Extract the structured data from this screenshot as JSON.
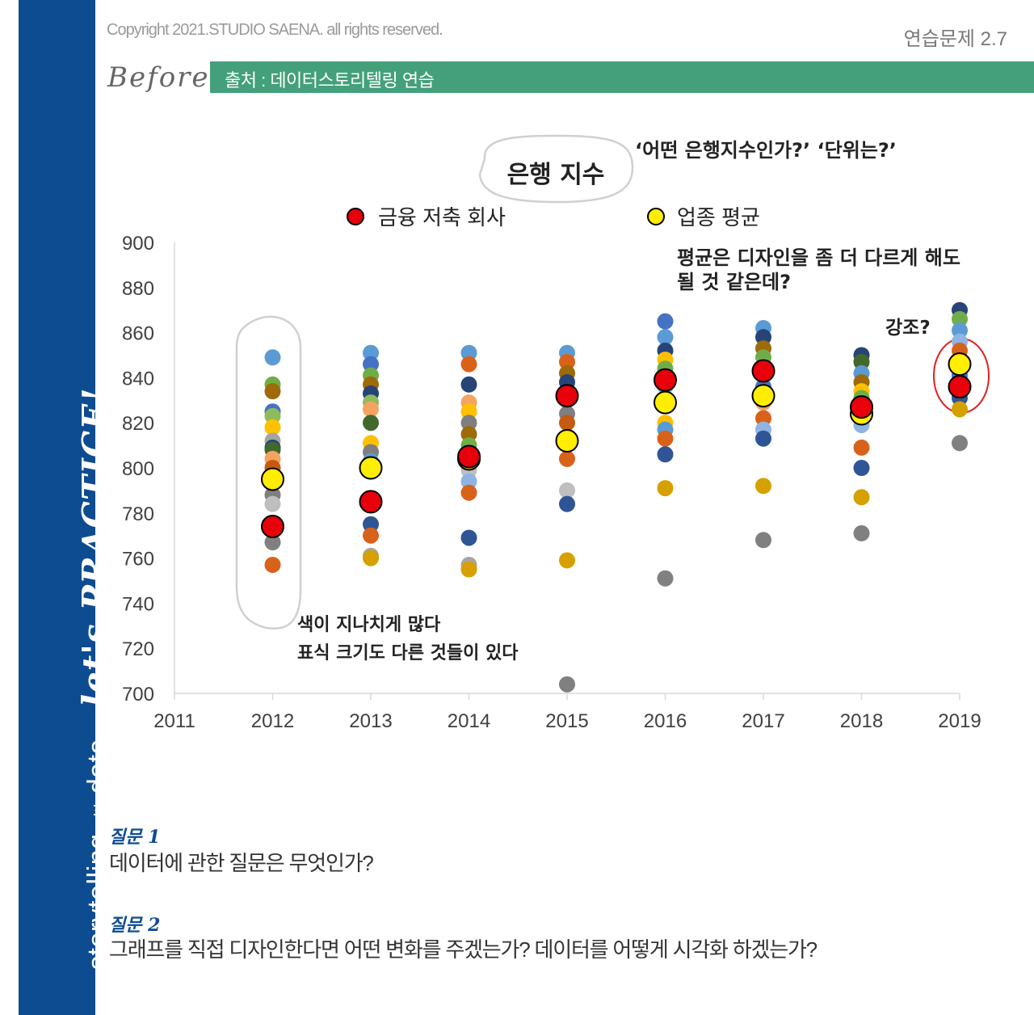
{
  "header": {
    "copyright": "Copyright 2021.STUDIO SAENA. all rights reserved.",
    "exercise": "연습문제 2.7",
    "before_label": "Before",
    "source": "출처 : 데이터스토리텔링 연습"
  },
  "sidebar": {
    "title": "storytelling",
    "with": "with",
    "data": "data",
    "script": "let's PRACTICE!"
  },
  "annotations": {
    "bubble": "은행 지수",
    "question_top": "‘어떤 은행지수인가?’ ‘단위는?’",
    "average_note_line1": "평균은 디자인을 좀 더 다르게 해도",
    "average_note_line2": "될 것 같은데?",
    "emphasis": "강조?",
    "colors_line1": "색이 지나치게 많다",
    "colors_line2": "표식 크기도 다른 것들이 있다"
  },
  "questions": [
    {
      "label": "질문 1",
      "text": "데이터에 관한 질문은 무엇인가?"
    },
    {
      "label": "질문 2",
      "text": "그래프를 직접 디자인한다면 어떤 변화를 주겠는가? 데이터를 어떻게 시각화 하겠는가?"
    }
  ],
  "chart_data": {
    "type": "scatter",
    "title": "은행 지수",
    "xlabel": "",
    "ylabel": "",
    "xlim": [
      2011,
      2019
    ],
    "ylim": [
      700,
      900
    ],
    "xticks": [
      "2011",
      "2012",
      "2013",
      "2014",
      "2015",
      "2016",
      "2017",
      "2018",
      "2019"
    ],
    "yticks": [
      "900",
      "880",
      "860",
      "840",
      "820",
      "800",
      "780",
      "760",
      "740",
      "720",
      "700"
    ],
    "legend": [
      {
        "name": "금융 저축 회사",
        "color": "#e8000b"
      },
      {
        "name": "업종 평균",
        "color": "#ffee00"
      }
    ],
    "series": [
      {
        "name": "금융 저축 회사",
        "color": "#e8000b",
        "x": [
          2012,
          2013,
          2014,
          2015,
          2016,
          2017,
          2018,
          2019
        ],
        "y": [
          774,
          785,
          805,
          832,
          839,
          843,
          827,
          836
        ]
      },
      {
        "name": "업종 평균",
        "color": "#ffee00",
        "x": [
          2012,
          2013,
          2014,
          2015,
          2016,
          2017,
          2018,
          2019
        ],
        "y": [
          795,
          800,
          804,
          812,
          829,
          832,
          824,
          846
        ]
      }
    ],
    "other_banks": [
      {
        "x": 2012,
        "y": [
          849,
          837,
          834,
          825,
          823,
          818,
          812,
          809,
          808,
          804,
          800,
          788,
          784,
          767,
          757
        ],
        "colors": [
          "#5b9bd5",
          "#70ad47",
          "#9e6a0a",
          "#4472c4",
          "#8fbc5a",
          "#ffc000",
          "#a5a5a5",
          "#264478",
          "#43682b",
          "#f4a460",
          "#c55a11",
          "#7f7f7f",
          "#bfbfbf",
          "#808080",
          "#d9621b"
        ]
      },
      {
        "x": 2013,
        "y": [
          851,
          846,
          841,
          837,
          833,
          829,
          826,
          820,
          811,
          807,
          803,
          775,
          770,
          761,
          760
        ],
        "colors": [
          "#5b9bd5",
          "#4472c4",
          "#70ad47",
          "#9e6a0a",
          "#264478",
          "#8fbc5a",
          "#f4a460",
          "#43682b",
          "#ffc000",
          "#7f7f7f",
          "#5b9bd5",
          "#2f5597",
          "#d9621b",
          "#a5a5a5",
          "#d6a000"
        ]
      },
      {
        "x": 2014,
        "y": [
          851,
          846,
          837,
          829,
          825,
          820,
          815,
          810,
          799,
          794,
          789,
          769,
          757,
          755
        ],
        "colors": [
          "#5b9bd5",
          "#d9621b",
          "#264478",
          "#f4a460",
          "#ffc000",
          "#7f7f7f",
          "#9e6a0a",
          "#70ad47",
          "#bfbfbf",
          "#8fb4e3",
          "#d9621b",
          "#2f5597",
          "#a5a5a5",
          "#d6a000"
        ]
      },
      {
        "x": 2015,
        "y": [
          851,
          847,
          842,
          838,
          830,
          824,
          820,
          804,
          790,
          784,
          759,
          704
        ],
        "colors": [
          "#5b9bd5",
          "#d9621b",
          "#9e6a0a",
          "#264478",
          "#70ad47",
          "#7f7f7f",
          "#c55a11",
          "#d9621b",
          "#bfbfbf",
          "#2f5597",
          "#d6a000",
          "#808080"
        ]
      },
      {
        "x": 2016,
        "y": [
          865,
          858,
          852,
          848,
          844,
          840,
          836,
          820,
          817,
          813,
          806,
          791,
          751
        ],
        "colors": [
          "#4472c4",
          "#5b9bd5",
          "#264478",
          "#ffc000",
          "#70ad47",
          "#9e6a0a",
          "#8fb4e3",
          "#ffc000",
          "#5b9bd5",
          "#d9621b",
          "#2f5597",
          "#d6a000",
          "#808080"
        ]
      },
      {
        "x": 2017,
        "y": [
          862,
          858,
          853,
          849,
          845,
          836,
          829,
          822,
          817,
          813,
          792,
          768
        ],
        "colors": [
          "#5b9bd5",
          "#264478",
          "#9e6a0a",
          "#70ad47",
          "#8fbc5a",
          "#4472c4",
          "#f4a460",
          "#d9621b",
          "#8fb4e3",
          "#2f5597",
          "#d6a000",
          "#808080"
        ]
      },
      {
        "x": 2018,
        "y": [
          850,
          847,
          842,
          838,
          834,
          831,
          819,
          809,
          800,
          787,
          771
        ],
        "colors": [
          "#264478",
          "#43682b",
          "#5b9bd5",
          "#9e6a0a",
          "#ffc000",
          "#70ad47",
          "#8fb4e3",
          "#d9621b",
          "#2f5597",
          "#d6a000",
          "#808080"
        ]
      },
      {
        "x": 2019,
        "y": [
          870,
          866,
          861,
          856,
          852,
          841,
          831,
          826,
          811
        ],
        "colors": [
          "#264478",
          "#70ad47",
          "#5b9bd5",
          "#8fb4e3",
          "#d9621b",
          "#4472c4",
          "#2f5597",
          "#d6a000",
          "#808080"
        ]
      }
    ]
  }
}
